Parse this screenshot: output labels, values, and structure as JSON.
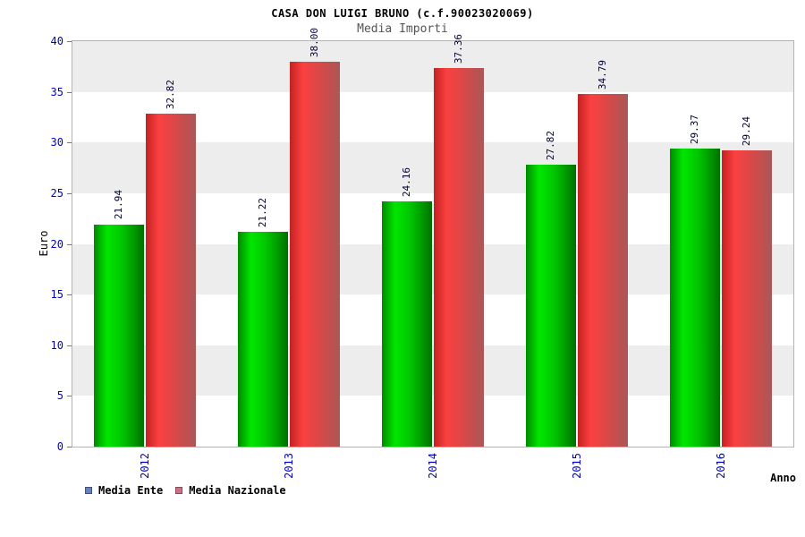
{
  "chart_data": {
    "type": "bar",
    "title": "CASA DON LUIGI BRUNO (c.f.90023020069)",
    "subtitle": "Media Importi",
    "xlabel": "Anno",
    "ylabel": "Euro",
    "categories": [
      "2012",
      "2013",
      "2014",
      "2015",
      "2016"
    ],
    "series": [
      {
        "name": "Media Ente",
        "values": [
          21.94,
          21.22,
          24.16,
          27.82,
          29.37
        ],
        "labels": [
          "21.94",
          "21.22",
          "24.16",
          "27.82",
          "29.37"
        ],
        "bar_color": "#00cc00"
      },
      {
        "name": "Media Nazionale",
        "values": [
          32.82,
          38.0,
          37.36,
          34.79,
          29.24
        ],
        "labels": [
          "32.82",
          "38.00",
          "37.36",
          "34.79",
          "29.24"
        ],
        "bar_color": "#dd3333"
      }
    ],
    "ylim": [
      0,
      40
    ],
    "ytick_step": 5,
    "yticks": [
      0,
      5,
      10,
      15,
      20,
      25,
      30,
      35,
      40
    ],
    "grid": "banded",
    "legend_position": "bottom-left",
    "band_colors": [
      "#ffffff",
      "#ededed"
    ],
    "axis_label_color": "#0000cc",
    "value_label_color": "#000033"
  },
  "legend": {
    "items": [
      {
        "label": "Media Ente",
        "swatch_color": "#6680c0"
      },
      {
        "label": "Media Nazionale",
        "swatch_color": "#cc7088"
      }
    ]
  }
}
